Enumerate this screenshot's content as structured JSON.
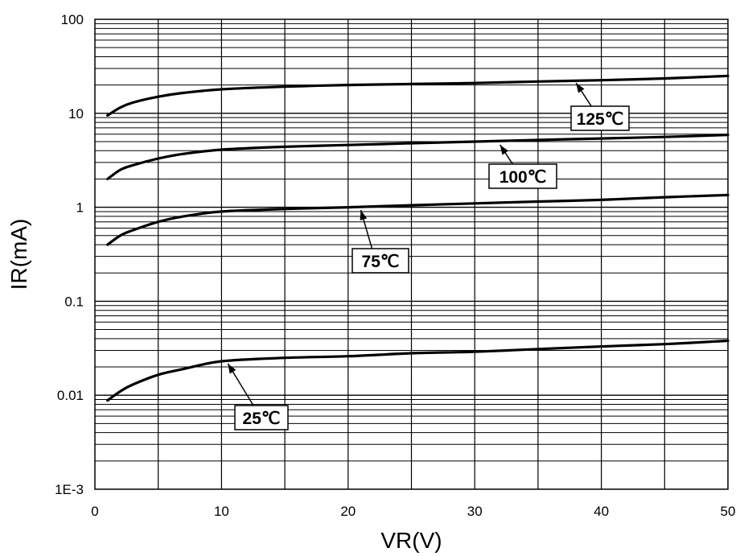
{
  "chart_data": {
    "type": "line",
    "title": "",
    "xlabel": "VR(V)",
    "ylabel": "IR(mA)",
    "xlim": [
      0,
      50
    ],
    "ylim": [
      0.001,
      100
    ],
    "yscale": "log",
    "grid": true,
    "x_ticks": [
      "0",
      "10",
      "20",
      "30",
      "40",
      "50"
    ],
    "y_ticks": [
      "1E-3",
      "0.01",
      "0.1",
      "1",
      "10",
      "100"
    ],
    "series": [
      {
        "name": "125℃",
        "x": [
          1,
          2,
          3,
          5,
          7,
          10,
          15,
          20,
          25,
          30,
          35,
          40,
          45,
          50
        ],
        "values": [
          9.5,
          11.5,
          13,
          15,
          16.5,
          18,
          19.2,
          20,
          20.5,
          21,
          21.8,
          22.5,
          23.5,
          25
        ]
      },
      {
        "name": "100℃",
        "x": [
          1,
          2,
          3,
          5,
          7,
          10,
          15,
          20,
          25,
          30,
          35,
          40,
          45,
          50
        ],
        "values": [
          2.0,
          2.5,
          2.8,
          3.3,
          3.7,
          4.1,
          4.4,
          4.6,
          4.8,
          5.0,
          5.2,
          5.4,
          5.6,
          5.9
        ]
      },
      {
        "name": "75℃",
        "x": [
          1,
          2,
          3,
          5,
          7,
          10,
          15,
          20,
          25,
          30,
          35,
          40,
          45,
          50
        ],
        "values": [
          0.4,
          0.5,
          0.57,
          0.7,
          0.8,
          0.9,
          0.96,
          1.0,
          1.05,
          1.1,
          1.15,
          1.2,
          1.28,
          1.35
        ]
      },
      {
        "name": "25℃",
        "x": [
          1,
          2,
          3,
          5,
          7,
          10,
          15,
          20,
          25,
          30,
          35,
          40,
          45,
          50
        ],
        "values": [
          0.0088,
          0.011,
          0.013,
          0.0165,
          0.019,
          0.023,
          0.025,
          0.026,
          0.028,
          0.029,
          0.031,
          0.033,
          0.035,
          0.038
        ]
      }
    ],
    "annotations": [
      {
        "text": "125℃",
        "series": "125℃",
        "x": 38,
        "y": 22.8
      },
      {
        "text": "100℃",
        "series": "100℃",
        "x": 32,
        "y": 5.0
      },
      {
        "text": "75℃",
        "series": "75℃",
        "x": 21,
        "y": 1.01
      },
      {
        "text": "25℃",
        "series": "25℃",
        "x": 10.5,
        "y": 0.0235
      }
    ]
  }
}
